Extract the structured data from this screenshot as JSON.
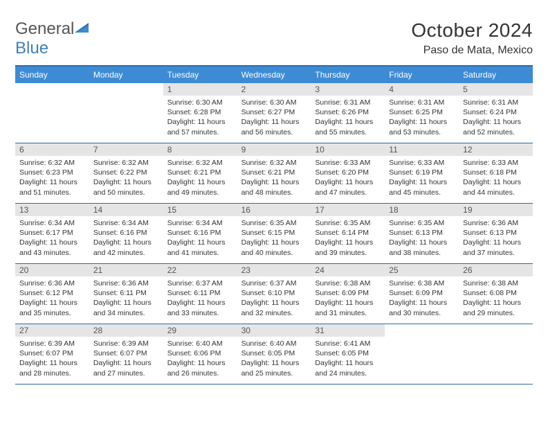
{
  "brand": {
    "word1": "General",
    "word2": "Blue"
  },
  "title": "October 2024",
  "location": "Paso de Mata, Mexico",
  "colors": {
    "header_bar": "#3d8bd4",
    "border": "#2b6cb0",
    "daynum_bg": "#e5e5e5",
    "text": "#333333",
    "brand_gray": "#555555",
    "brand_blue": "#3d7fc4"
  },
  "weekdays": [
    "Sunday",
    "Monday",
    "Tuesday",
    "Wednesday",
    "Thursday",
    "Friday",
    "Saturday"
  ],
  "grid": {
    "start_weekday_index": 2,
    "days_in_month": 31
  },
  "days": {
    "1": {
      "sunrise": "6:30 AM",
      "sunset": "6:28 PM",
      "daylight": "11 hours and 57 minutes."
    },
    "2": {
      "sunrise": "6:30 AM",
      "sunset": "6:27 PM",
      "daylight": "11 hours and 56 minutes."
    },
    "3": {
      "sunrise": "6:31 AM",
      "sunset": "6:26 PM",
      "daylight": "11 hours and 55 minutes."
    },
    "4": {
      "sunrise": "6:31 AM",
      "sunset": "6:25 PM",
      "daylight": "11 hours and 53 minutes."
    },
    "5": {
      "sunrise": "6:31 AM",
      "sunset": "6:24 PM",
      "daylight": "11 hours and 52 minutes."
    },
    "6": {
      "sunrise": "6:32 AM",
      "sunset": "6:23 PM",
      "daylight": "11 hours and 51 minutes."
    },
    "7": {
      "sunrise": "6:32 AM",
      "sunset": "6:22 PM",
      "daylight": "11 hours and 50 minutes."
    },
    "8": {
      "sunrise": "6:32 AM",
      "sunset": "6:21 PM",
      "daylight": "11 hours and 49 minutes."
    },
    "9": {
      "sunrise": "6:32 AM",
      "sunset": "6:21 PM",
      "daylight": "11 hours and 48 minutes."
    },
    "10": {
      "sunrise": "6:33 AM",
      "sunset": "6:20 PM",
      "daylight": "11 hours and 47 minutes."
    },
    "11": {
      "sunrise": "6:33 AM",
      "sunset": "6:19 PM",
      "daylight": "11 hours and 45 minutes."
    },
    "12": {
      "sunrise": "6:33 AM",
      "sunset": "6:18 PM",
      "daylight": "11 hours and 44 minutes."
    },
    "13": {
      "sunrise": "6:34 AM",
      "sunset": "6:17 PM",
      "daylight": "11 hours and 43 minutes."
    },
    "14": {
      "sunrise": "6:34 AM",
      "sunset": "6:16 PM",
      "daylight": "11 hours and 42 minutes."
    },
    "15": {
      "sunrise": "6:34 AM",
      "sunset": "6:16 PM",
      "daylight": "11 hours and 41 minutes."
    },
    "16": {
      "sunrise": "6:35 AM",
      "sunset": "6:15 PM",
      "daylight": "11 hours and 40 minutes."
    },
    "17": {
      "sunrise": "6:35 AM",
      "sunset": "6:14 PM",
      "daylight": "11 hours and 39 minutes."
    },
    "18": {
      "sunrise": "6:35 AM",
      "sunset": "6:13 PM",
      "daylight": "11 hours and 38 minutes."
    },
    "19": {
      "sunrise": "6:36 AM",
      "sunset": "6:13 PM",
      "daylight": "11 hours and 37 minutes."
    },
    "20": {
      "sunrise": "6:36 AM",
      "sunset": "6:12 PM",
      "daylight": "11 hours and 35 minutes."
    },
    "21": {
      "sunrise": "6:36 AM",
      "sunset": "6:11 PM",
      "daylight": "11 hours and 34 minutes."
    },
    "22": {
      "sunrise": "6:37 AM",
      "sunset": "6:11 PM",
      "daylight": "11 hours and 33 minutes."
    },
    "23": {
      "sunrise": "6:37 AM",
      "sunset": "6:10 PM",
      "daylight": "11 hours and 32 minutes."
    },
    "24": {
      "sunrise": "6:38 AM",
      "sunset": "6:09 PM",
      "daylight": "11 hours and 31 minutes."
    },
    "25": {
      "sunrise": "6:38 AM",
      "sunset": "6:09 PM",
      "daylight": "11 hours and 30 minutes."
    },
    "26": {
      "sunrise": "6:38 AM",
      "sunset": "6:08 PM",
      "daylight": "11 hours and 29 minutes."
    },
    "27": {
      "sunrise": "6:39 AM",
      "sunset": "6:07 PM",
      "daylight": "11 hours and 28 minutes."
    },
    "28": {
      "sunrise": "6:39 AM",
      "sunset": "6:07 PM",
      "daylight": "11 hours and 27 minutes."
    },
    "29": {
      "sunrise": "6:40 AM",
      "sunset": "6:06 PM",
      "daylight": "11 hours and 26 minutes."
    },
    "30": {
      "sunrise": "6:40 AM",
      "sunset": "6:05 PM",
      "daylight": "11 hours and 25 minutes."
    },
    "31": {
      "sunrise": "6:41 AM",
      "sunset": "6:05 PM",
      "daylight": "11 hours and 24 minutes."
    }
  },
  "labels": {
    "sunrise": "Sunrise:",
    "sunset": "Sunset:",
    "daylight": "Daylight:"
  }
}
